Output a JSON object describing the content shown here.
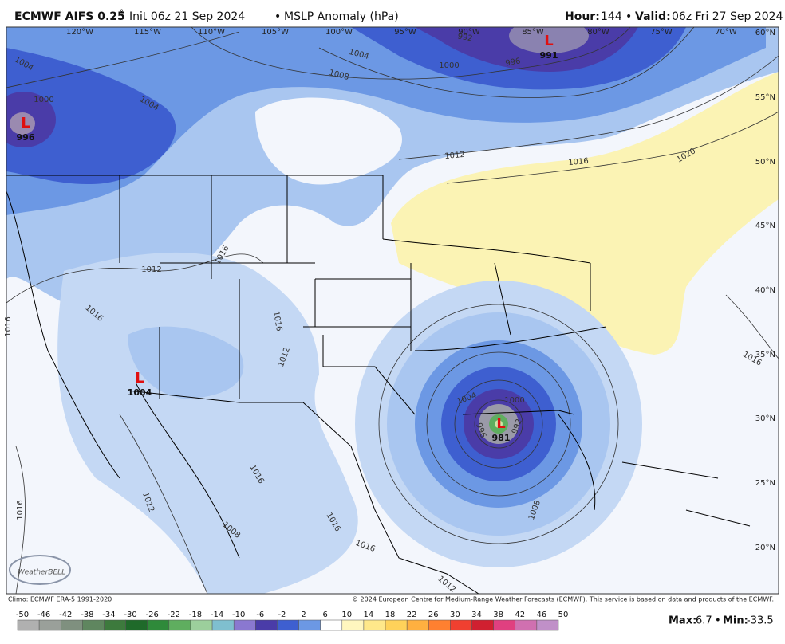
{
  "header": {
    "model": "ECMWF AIFS 0.25",
    "degree": "°",
    "init": "Init 06z 21 Sep 2024",
    "separator": "•",
    "product": "MSLP Anomaly (hPa)",
    "hour_label": "Hour:",
    "hour": "144",
    "valid_label": "Valid:",
    "valid": "06z Fri 27 Sep 2024"
  },
  "map": {
    "longitudes": [
      "120°W",
      "115°W",
      "110°W",
      "105°W",
      "100°W",
      "95°W",
      "90°W",
      "85°W",
      "80°W",
      "75°W",
      "70°W"
    ],
    "latitudes": [
      "60°N",
      "55°N",
      "50°N",
      "45°N",
      "40°N",
      "35°N",
      "30°N",
      "25°N",
      "20°N"
    ],
    "isobar_labels": [
      1004,
      1000,
      1004,
      1004,
      1008,
      1000,
      996,
      992,
      1012,
      1016,
      1020,
      1016,
      1012,
      1016,
      1016,
      1016,
      1012,
      1004,
      1000,
      996,
      992,
      1016,
      1016,
      1012,
      1008,
      1016,
      1016,
      1016,
      1008,
      1012
    ],
    "lows": [
      {
        "symbol": "L",
        "value": 991
      },
      {
        "symbol": "L",
        "value": 996
      },
      {
        "symbol": "L",
        "value": 1004
      },
      {
        "symbol": "L",
        "value": 981
      }
    ],
    "logo": "WeatherBELL"
  },
  "footer": {
    "climo": "Climo: ECMWF ERA-5 1991-2020",
    "copyright": "© 2024 European Centre for Medium-Range Weather Forecasts (ECMWF). This service is based on data and products of the ECMWF.",
    "max_label": "Max:",
    "max": 6.7,
    "separator": "•",
    "min_label": "Min:",
    "min": -33.5
  },
  "colorbar": {
    "ticks": [
      -50,
      -46,
      -42,
      -38,
      -34,
      -30,
      -26,
      -22,
      -18,
      -14,
      -10,
      -6,
      -2,
      2,
      6,
      10,
      14,
      18,
      22,
      26,
      30,
      34,
      38,
      42,
      46,
      50
    ]
  }
}
